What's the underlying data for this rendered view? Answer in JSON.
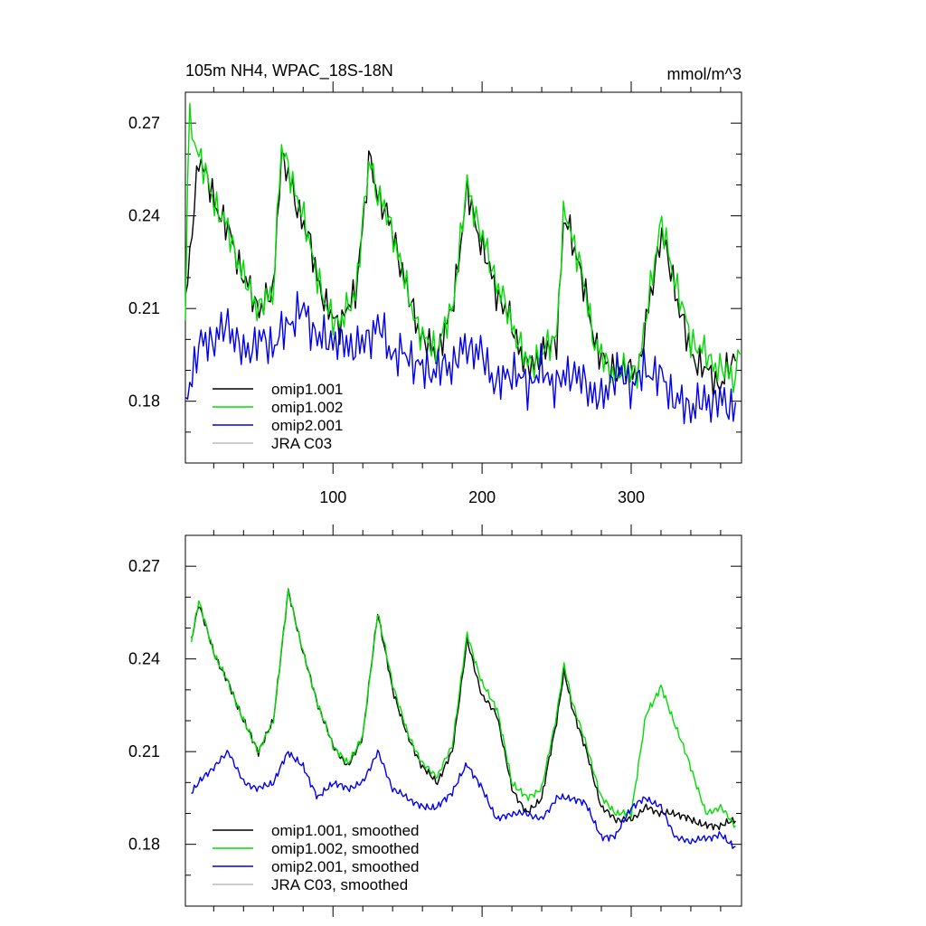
{
  "header": {
    "title": "105m NH4, WPAC_18S-18N",
    "units": "mmol/m^3"
  },
  "colors": {
    "omip1_001": "#000000",
    "omip1_002": "#00dd00",
    "omip2_001": "#0000ee",
    "jra_c03": "#bbbbbb"
  },
  "chart_data": [
    {
      "type": "line",
      "title": "105m NH4, WPAC_18S-18N",
      "ylabel_right": "mmol/m^3",
      "xlim": [
        1,
        374
      ],
      "ylim": [
        0.16,
        0.28
      ],
      "yticks": [
        0.18,
        0.21,
        0.24,
        0.27
      ],
      "ytick_labels": [
        "0.18",
        "0.21",
        "0.24",
        "0.27"
      ],
      "xticks": [
        100,
        200,
        300
      ],
      "xtick_labels": [
        "100",
        "200",
        "300"
      ],
      "legend": {
        "position": "bottom-left",
        "entries": [
          "omip1.001",
          "omip1.002",
          "omip2.001",
          "JRA C03"
        ]
      },
      "series": [
        {
          "name": "omip1.001",
          "color": "#000000",
          "x": [
            1,
            10,
            20,
            30,
            40,
            50,
            60,
            65,
            75,
            85,
            95,
            105,
            115,
            125,
            128,
            140,
            150,
            160,
            170,
            180,
            190,
            200,
            210,
            220,
            230,
            240,
            250,
            255,
            265,
            275,
            285,
            295,
            305,
            315,
            320,
            330,
            340,
            350,
            360,
            370
          ],
          "y": [
            0.21,
            0.26,
            0.245,
            0.235,
            0.22,
            0.21,
            0.215,
            0.26,
            0.245,
            0.23,
            0.21,
            0.205,
            0.215,
            0.26,
            0.25,
            0.235,
            0.215,
            0.2,
            0.195,
            0.21,
            0.248,
            0.23,
            0.215,
            0.205,
            0.19,
            0.195,
            0.2,
            0.24,
            0.225,
            0.2,
            0.19,
            0.19,
            0.19,
            0.22,
            0.235,
            0.215,
            0.195,
            0.19,
            0.185,
            0.195
          ]
        },
        {
          "name": "omip1.002",
          "color": "#00dd00",
          "x": [
            1,
            3,
            10,
            20,
            30,
            40,
            50,
            60,
            65,
            75,
            85,
            95,
            105,
            115,
            125,
            128,
            140,
            150,
            160,
            170,
            180,
            190,
            200,
            210,
            220,
            230,
            240,
            250,
            255,
            265,
            275,
            285,
            295,
            305,
            315,
            320,
            330,
            340,
            350,
            360,
            370,
            374
          ],
          "y": [
            0.205,
            0.272,
            0.26,
            0.245,
            0.235,
            0.22,
            0.21,
            0.215,
            0.262,
            0.248,
            0.23,
            0.21,
            0.205,
            0.215,
            0.26,
            0.25,
            0.235,
            0.215,
            0.2,
            0.197,
            0.21,
            0.25,
            0.233,
            0.218,
            0.205,
            0.192,
            0.195,
            0.202,
            0.242,
            0.226,
            0.2,
            0.19,
            0.19,
            0.19,
            0.224,
            0.238,
            0.218,
            0.2,
            0.195,
            0.19,
            0.188,
            0.202
          ]
        },
        {
          "name": "omip2.001",
          "color": "#0000ee",
          "x": [
            1,
            10,
            20,
            30,
            40,
            50,
            60,
            70,
            80,
            90,
            100,
            110,
            120,
            130,
            140,
            150,
            160,
            170,
            180,
            190,
            200,
            210,
            220,
            230,
            240,
            250,
            260,
            270,
            280,
            290,
            300,
            310,
            320,
            330,
            340,
            350,
            360,
            370
          ],
          "y": [
            0.18,
            0.198,
            0.2,
            0.205,
            0.195,
            0.2,
            0.198,
            0.205,
            0.21,
            0.2,
            0.2,
            0.198,
            0.198,
            0.205,
            0.195,
            0.195,
            0.19,
            0.19,
            0.192,
            0.198,
            0.195,
            0.185,
            0.19,
            0.185,
            0.19,
            0.185,
            0.19,
            0.185,
            0.18,
            0.19,
            0.185,
            0.19,
            0.188,
            0.18,
            0.178,
            0.18,
            0.18,
            0.178
          ]
        },
        {
          "name": "JRA C03",
          "color": "#bbbbbb",
          "x": [],
          "y": []
        }
      ]
    },
    {
      "type": "line",
      "title": "",
      "xlim": [
        1,
        374
      ],
      "ylim": [
        0.16,
        0.28
      ],
      "yticks": [
        0.18,
        0.21,
        0.24,
        0.27
      ],
      "ytick_labels": [
        "0.18",
        "0.21",
        "0.24",
        "0.27"
      ],
      "xticks": [
        100,
        200,
        300
      ],
      "xtick_labels": [],
      "legend": {
        "position": "bottom-left",
        "entries": [
          "omip1.001, smoothed",
          "omip1.002, smoothed",
          "omip2.001, smoothed",
          "JRA C03, smoothed"
        ]
      },
      "series": [
        {
          "name": "omip1.001, smoothed",
          "color": "#000000",
          "x": [
            5,
            10,
            20,
            30,
            40,
            50,
            60,
            70,
            80,
            90,
            100,
            110,
            120,
            130,
            140,
            150,
            160,
            170,
            180,
            190,
            200,
            210,
            220,
            230,
            240,
            250,
            255,
            260,
            270,
            280,
            290,
            300,
            310,
            320,
            330,
            340,
            350,
            360,
            370
          ],
          "y": [
            0.246,
            0.258,
            0.242,
            0.232,
            0.22,
            0.21,
            0.22,
            0.262,
            0.242,
            0.225,
            0.212,
            0.205,
            0.215,
            0.255,
            0.23,
            0.215,
            0.205,
            0.2,
            0.21,
            0.246,
            0.228,
            0.222,
            0.198,
            0.19,
            0.195,
            0.22,
            0.236,
            0.225,
            0.21,
            0.192,
            0.188,
            0.188,
            0.192,
            0.19,
            0.19,
            0.188,
            0.186,
            0.186,
            0.188
          ]
        },
        {
          "name": "omip1.002, smoothed",
          "color": "#00dd00",
          "x": [
            5,
            10,
            20,
            30,
            40,
            50,
            60,
            70,
            80,
            90,
            100,
            110,
            120,
            130,
            140,
            150,
            160,
            170,
            180,
            190,
            200,
            210,
            220,
            230,
            240,
            250,
            255,
            260,
            270,
            280,
            290,
            300,
            310,
            320,
            330,
            340,
            350,
            360,
            370
          ],
          "y": [
            0.246,
            0.259,
            0.242,
            0.232,
            0.22,
            0.21,
            0.22,
            0.262,
            0.242,
            0.225,
            0.212,
            0.206,
            0.215,
            0.255,
            0.232,
            0.216,
            0.206,
            0.202,
            0.212,
            0.248,
            0.232,
            0.224,
            0.2,
            0.195,
            0.198,
            0.222,
            0.238,
            0.227,
            0.212,
            0.195,
            0.19,
            0.19,
            0.222,
            0.231,
            0.218,
            0.205,
            0.19,
            0.192,
            0.186
          ]
        },
        {
          "name": "omip2.001, smoothed",
          "color": "#0000ee",
          "x": [
            5,
            10,
            20,
            30,
            40,
            50,
            60,
            70,
            80,
            90,
            100,
            110,
            120,
            130,
            140,
            150,
            160,
            170,
            180,
            190,
            200,
            210,
            220,
            230,
            240,
            250,
            260,
            270,
            280,
            290,
            300,
            310,
            320,
            330,
            340,
            350,
            360,
            370
          ],
          "y": [
            0.197,
            0.2,
            0.205,
            0.21,
            0.2,
            0.198,
            0.2,
            0.21,
            0.205,
            0.195,
            0.2,
            0.198,
            0.2,
            0.21,
            0.198,
            0.195,
            0.192,
            0.192,
            0.197,
            0.206,
            0.198,
            0.188,
            0.19,
            0.19,
            0.188,
            0.195,
            0.195,
            0.193,
            0.182,
            0.183,
            0.192,
            0.195,
            0.192,
            0.182,
            0.181,
            0.182,
            0.183,
            0.179
          ]
        },
        {
          "name": "JRA C03, smoothed",
          "color": "#bbbbbb",
          "x": [],
          "y": []
        }
      ]
    }
  ]
}
